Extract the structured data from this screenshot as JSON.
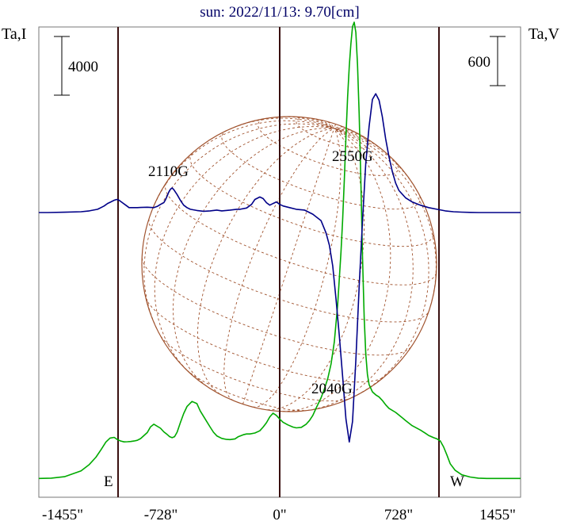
{
  "chart_data": {
    "type": "line",
    "title": "sun: 2022/11/13: 9.70[cm]",
    "left_axis_label": "Ta,I",
    "right_axis_label": "Ta,V",
    "x_unit": "arcsec",
    "x_range": [
      -1455,
      1455
    ],
    "x_tick_values": [
      -1455,
      -728,
      0,
      728,
      1455
    ],
    "x_tick_labels": [
      "-1455\"",
      "-728\"",
      "0\"",
      "728\"",
      "1455\""
    ],
    "limb_x": [
      -970,
      970
    ],
    "scale_bars": [
      {
        "label": "4000",
        "axis": "left"
      },
      {
        "label": "600",
        "axis": "right"
      }
    ],
    "annotations": [
      {
        "text": "2110G",
        "x": -640
      },
      {
        "text": "2550G",
        "x": 470
      },
      {
        "text": "2040G",
        "x": 360
      },
      {
        "text": "E",
        "x": -1030
      },
      {
        "text": "W",
        "x": 1070
      }
    ],
    "colors": {
      "stokes_i": "#00aa00",
      "stokes_v": "#000088",
      "disk": "#a0522d",
      "limb_lines": "#3a1010",
      "title": "#000066"
    },
    "series": [
      {
        "key": "I",
        "comment": "Stokes I (intensity), left axis, y in units of Ta,I",
        "x": [
          -1455,
          -1380,
          -1300,
          -1200,
          -1150,
          -1110,
          -1080,
          -1050,
          -1025,
          -1000,
          -980,
          -960,
          -940,
          -920,
          -900,
          -880,
          -860,
          -840,
          -800,
          -780,
          -760,
          -720,
          -700,
          -680,
          -665,
          -650,
          -635,
          -620,
          -600,
          -580,
          -560,
          -530,
          -500,
          -480,
          -450,
          -420,
          -400,
          -380,
          -350,
          -320,
          -300,
          -270,
          -250,
          -220,
          -200,
          -180,
          -150,
          -120,
          -100,
          -80,
          -60,
          -40,
          -20,
          0,
          20,
          50,
          80,
          100,
          130,
          160,
          180,
          200,
          220,
          250,
          270,
          290,
          310,
          330,
          350,
          370,
          380,
          390,
          400,
          410,
          420,
          430,
          440,
          450,
          460,
          470,
          480,
          490,
          500,
          510,
          520,
          530,
          540,
          560,
          580,
          600,
          620,
          640,
          660,
          700,
          730,
          760,
          800,
          850,
          880,
          900,
          930,
          950,
          970,
          990,
          1010,
          1030,
          1060,
          1100,
          1150,
          1200,
          1250,
          1300,
          1380,
          1455
        ],
        "y": [
          200,
          220,
          320,
          720,
          1150,
          1650,
          2150,
          2680,
          2950,
          3000,
          2850,
          2750,
          2690,
          2700,
          2720,
          2750,
          2800,
          2920,
          3330,
          3720,
          3900,
          3620,
          3380,
          3200,
          3050,
          2980,
          3050,
          3350,
          4000,
          4620,
          5100,
          5450,
          5300,
          4800,
          4250,
          3700,
          3350,
          3100,
          2930,
          2860,
          2850,
          2900,
          3050,
          3180,
          3230,
          3230,
          3300,
          3450,
          3700,
          4000,
          4400,
          4650,
          4500,
          4250,
          4030,
          3850,
          3700,
          3650,
          3680,
          3900,
          4150,
          4500,
          5000,
          5700,
          6300,
          7000,
          8000,
          9500,
          12000,
          15600,
          17800,
          20500,
          23500,
          26200,
          28300,
          29800,
          31000,
          31300,
          30600,
          28400,
          25000,
          20500,
          15300,
          11200,
          8700,
          7300,
          6600,
          6100,
          5900,
          5750,
          5520,
          5220,
          4980,
          4700,
          4430,
          4150,
          3800,
          3500,
          3280,
          3130,
          2980,
          2900,
          2750,
          2350,
          1800,
          1200,
          750,
          450,
          300,
          220,
          200,
          200,
          200,
          200
        ]
      },
      {
        "key": "V",
        "comment": "Stokes V (circular polarization), right axis, y in units of Ta,V",
        "x": [
          -1455,
          -1400,
          -1300,
          -1200,
          -1150,
          -1100,
          -1060,
          -1040,
          -1020,
          -1000,
          -985,
          -970,
          -950,
          -930,
          -910,
          -880,
          -860,
          -840,
          -800,
          -760,
          -740,
          -720,
          -700,
          -690,
          -680,
          -670,
          -660,
          -650,
          -640,
          -620,
          -600,
          -580,
          -560,
          -540,
          -500,
          -460,
          -420,
          -380,
          -350,
          -300,
          -260,
          -240,
          -200,
          -170,
          -150,
          -120,
          -100,
          -80,
          -60,
          -40,
          -20,
          0,
          20,
          60,
          100,
          150,
          200,
          250,
          280,
          300,
          320,
          340,
          360,
          380,
          400,
          420,
          440,
          460,
          480,
          500,
          520,
          540,
          560,
          580,
          600,
          620,
          640,
          660,
          680,
          700,
          720,
          760,
          800,
          850,
          900,
          950,
          1000,
          1050,
          1100,
          1150,
          1200,
          1300,
          1455
        ],
        "y": [
          0,
          0,
          4,
          10,
          20,
          40,
          80,
          110,
          130,
          150,
          160,
          150,
          120,
          90,
          60,
          60,
          60,
          62,
          65,
          60,
          75,
          100,
          120,
          155,
          200,
          250,
          285,
          300,
          280,
          220,
          150,
          90,
          60,
          40,
          25,
          15,
          20,
          30,
          20,
          30,
          40,
          40,
          55,
          100,
          160,
          190,
          170,
          120,
          90,
          110,
          130,
          100,
          80,
          60,
          40,
          30,
          -20,
          -100,
          -250,
          -400,
          -650,
          -1050,
          -1500,
          -2000,
          -2520,
          -2800,
          -2550,
          -1800,
          -900,
          -100,
          600,
          1050,
          1380,
          1450,
          1370,
          1170,
          900,
          680,
          500,
          360,
          270,
          180,
          130,
          90,
          60,
          40,
          20,
          10,
          5,
          2,
          0,
          0,
          0
        ]
      }
    ]
  }
}
